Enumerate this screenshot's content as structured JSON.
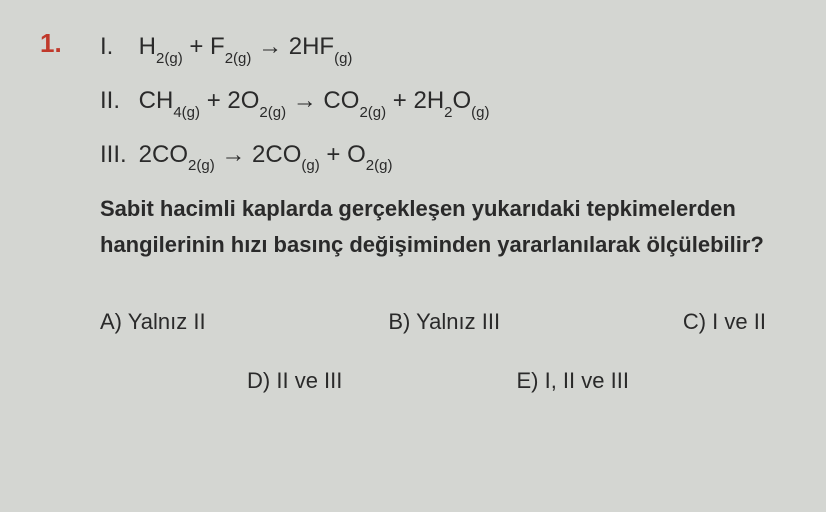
{
  "question_number": "1.",
  "equations": {
    "eq1": {
      "roman": "I.",
      "formula_parts": [
        "H",
        "2(g)",
        " + F",
        "2(g)",
        " → 2HF",
        "(g)"
      ]
    },
    "eq2": {
      "roman": "II.",
      "formula_parts": [
        "CH",
        "4(g)",
        " + 2O",
        "2(g)",
        " → CO",
        "2(g)",
        " + 2H",
        "2",
        "O",
        "(g)"
      ]
    },
    "eq3": {
      "roman": "III.",
      "formula_parts": [
        "2CO",
        "2(g)",
        " → 2CO",
        "(g)",
        " + O",
        "2(g)"
      ]
    }
  },
  "question_text": "Sabit hacimli kaplarda gerçekleşen yukarıdaki tepkimelerden hangilerinin hızı basınç değişiminden yararlanılarak ölçülebilir?",
  "options": {
    "a": "A) Yalnız II",
    "b": "B) Yalnız III",
    "c": "C) I ve II",
    "d": "D) II ve III",
    "e": "E) I, II ve III"
  },
  "colors": {
    "background": "#d4d6d2",
    "text": "#2a2a2a",
    "question_number": "#c0392b"
  }
}
